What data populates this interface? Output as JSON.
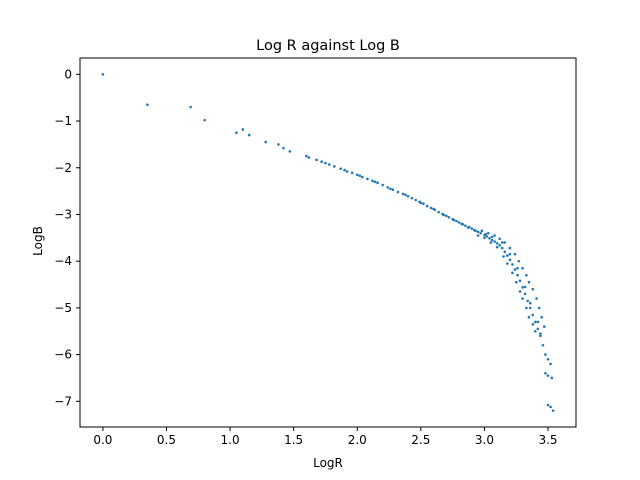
{
  "chart_data": {
    "type": "scatter",
    "title": "Log R against Log B",
    "xlabel": "LogR",
    "ylabel": "LogB",
    "xlim": [
      -0.18,
      3.72
    ],
    "ylim": [
      -7.55,
      0.35
    ],
    "xticks": [
      0.0,
      0.5,
      1.0,
      1.5,
      2.0,
      2.5,
      3.0,
      3.5
    ],
    "xtick_labels": [
      "0.0",
      "0.5",
      "1.0",
      "1.5",
      "2.0",
      "2.5",
      "3.0",
      "3.5"
    ],
    "yticks": [
      0,
      -1,
      -2,
      -3,
      -4,
      -5,
      -6,
      -7
    ],
    "ytick_labels": [
      "0",
      "−1",
      "−2",
      "−3",
      "−4",
      "−5",
      "−6",
      "−7"
    ],
    "grid": false,
    "series": [
      {
        "color": "#1f77b4",
        "points": [
          [
            0.0,
            0.0
          ],
          [
            0.35,
            -0.65
          ],
          [
            0.69,
            -0.7
          ],
          [
            0.8,
            -0.98
          ],
          [
            1.05,
            -1.25
          ],
          [
            1.1,
            -1.18
          ],
          [
            1.15,
            -1.3
          ],
          [
            1.28,
            -1.45
          ],
          [
            1.38,
            -1.5
          ],
          [
            1.42,
            -1.58
          ],
          [
            1.47,
            -1.65
          ],
          [
            1.6,
            -1.75
          ],
          [
            1.62,
            -1.78
          ],
          [
            1.68,
            -1.83
          ],
          [
            1.72,
            -1.87
          ],
          [
            1.75,
            -1.9
          ],
          [
            1.78,
            -1.93
          ],
          [
            1.82,
            -1.97
          ],
          [
            1.87,
            -2.02
          ],
          [
            1.92,
            -2.08
          ],
          [
            1.96,
            -2.11
          ],
          [
            2.0,
            -2.15
          ],
          [
            2.04,
            -2.2
          ],
          [
            2.08,
            -2.24
          ],
          [
            2.12,
            -2.28
          ],
          [
            2.16,
            -2.32
          ],
          [
            2.2,
            -2.37
          ],
          [
            2.24,
            -2.42
          ],
          [
            2.28,
            -2.47
          ],
          [
            2.32,
            -2.52
          ],
          [
            2.36,
            -2.56
          ],
          [
            2.4,
            -2.61
          ],
          [
            2.43,
            -2.65
          ],
          [
            2.46,
            -2.69
          ],
          [
            2.49,
            -2.73
          ],
          [
            2.52,
            -2.77
          ],
          [
            2.55,
            -2.82
          ],
          [
            2.58,
            -2.86
          ],
          [
            2.61,
            -2.9
          ],
          [
            2.64,
            -2.95
          ],
          [
            2.67,
            -2.99
          ],
          [
            2.7,
            -3.03
          ],
          [
            2.72,
            -3.06
          ],
          [
            2.75,
            -3.1
          ],
          [
            2.78,
            -3.14
          ],
          [
            2.8,
            -3.17
          ],
          [
            2.83,
            -3.21
          ],
          [
            2.85,
            -3.24
          ],
          [
            2.88,
            -3.27
          ],
          [
            2.9,
            -3.3
          ],
          [
            2.92,
            -3.33
          ],
          [
            2.95,
            -3.37
          ],
          [
            2.97,
            -3.4
          ],
          [
            3.0,
            -3.44
          ],
          [
            3.02,
            -3.47
          ],
          [
            3.04,
            -3.51
          ],
          [
            3.06,
            -3.55
          ],
          [
            3.08,
            -3.58
          ],
          [
            3.1,
            -3.62
          ],
          [
            3.12,
            -3.66
          ],
          [
            3.14,
            -3.72
          ],
          [
            3.16,
            -3.8
          ],
          [
            3.18,
            -3.88
          ],
          [
            3.2,
            -3.97
          ],
          [
            3.22,
            -4.07
          ],
          [
            3.24,
            -4.18
          ],
          [
            3.26,
            -4.3
          ],
          [
            3.28,
            -4.42
          ],
          [
            3.3,
            -4.56
          ],
          [
            3.32,
            -4.7
          ],
          [
            3.34,
            -4.85
          ],
          [
            3.36,
            -5.0
          ],
          [
            3.38,
            -5.15
          ],
          [
            3.4,
            -5.3
          ],
          [
            3.42,
            -5.45
          ],
          [
            3.44,
            -5.6
          ],
          [
            3.46,
            -5.8
          ],
          [
            3.48,
            -6.0
          ],
          [
            3.5,
            -6.1
          ],
          [
            3.52,
            -6.2
          ],
          [
            3.48,
            -6.4
          ],
          [
            3.5,
            -6.45
          ],
          [
            3.53,
            -6.5
          ],
          [
            3.5,
            -7.08
          ],
          [
            3.52,
            -7.12
          ],
          [
            3.54,
            -7.2
          ],
          [
            2.95,
            -3.45
          ],
          [
            3.0,
            -3.5
          ],
          [
            3.05,
            -3.6
          ],
          [
            3.1,
            -3.7
          ],
          [
            3.15,
            -3.9
          ],
          [
            3.18,
            -4.05
          ],
          [
            3.22,
            -4.25
          ],
          [
            3.25,
            -4.45
          ],
          [
            3.28,
            -4.65
          ],
          [
            3.3,
            -4.8
          ],
          [
            3.33,
            -5.0
          ],
          [
            3.35,
            -5.2
          ],
          [
            3.38,
            -5.35
          ],
          [
            3.4,
            -5.5
          ],
          [
            2.98,
            -3.35
          ],
          [
            3.03,
            -3.4
          ],
          [
            3.08,
            -3.45
          ],
          [
            3.12,
            -3.52
          ],
          [
            3.16,
            -3.6
          ],
          [
            3.2,
            -3.72
          ],
          [
            3.24,
            -3.85
          ],
          [
            3.27,
            -4.0
          ],
          [
            3.3,
            -4.15
          ],
          [
            3.33,
            -4.3
          ],
          [
            3.35,
            -4.45
          ],
          [
            3.38,
            -4.6
          ],
          [
            3.41,
            -4.8
          ],
          [
            3.43,
            -5.0
          ],
          [
            3.45,
            -5.2
          ],
          [
            3.47,
            -5.4
          ],
          [
            3.44,
            -5.55
          ],
          [
            3.42,
            -5.3
          ],
          [
            3.36,
            -4.9
          ],
          [
            3.32,
            -4.55
          ],
          [
            3.26,
            -4.15
          ],
          [
            3.2,
            -3.85
          ],
          [
            3.14,
            -3.6
          ],
          [
            3.06,
            -3.48
          ],
          [
            3.01,
            -3.42
          ],
          [
            2.93,
            -3.35
          ],
          [
            2.87,
            -3.28
          ],
          [
            2.82,
            -3.2
          ],
          [
            2.76,
            -3.12
          ],
          [
            2.68,
            -3.01
          ],
          [
            2.6,
            -2.88
          ],
          [
            2.5,
            -2.75
          ],
          [
            2.38,
            -2.58
          ],
          [
            2.26,
            -2.45
          ],
          [
            2.14,
            -2.3
          ],
          [
            2.02,
            -2.17
          ],
          [
            1.9,
            -2.05
          ]
        ]
      }
    ]
  }
}
